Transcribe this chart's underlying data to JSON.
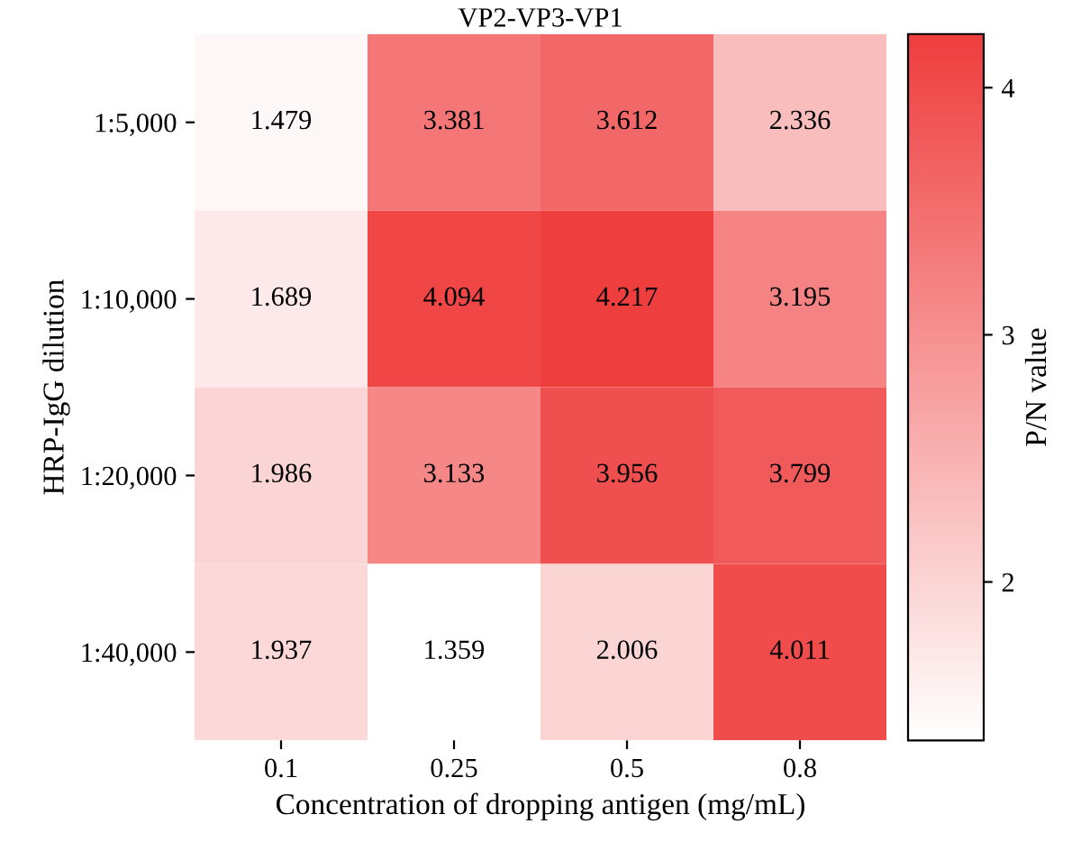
{
  "chart_data": {
    "type": "heatmap",
    "title": "VP2-VP3-VP1",
    "xlabel": "Concentration of dropping antigen (mg/mL)",
    "ylabel": "HRP-IgG dilution",
    "clabel": "P/N value",
    "categories": [
      "0.1",
      "0.25",
      "0.5",
      "0.8"
    ],
    "y_categories": [
      "1:5,000",
      "1:10,000",
      "1:20,000",
      "1:40,000"
    ],
    "cells": [
      [
        1.479,
        3.381,
        3.612,
        2.336
      ],
      [
        1.689,
        4.094,
        4.217,
        3.195
      ],
      [
        1.986,
        3.133,
        3.956,
        3.799
      ],
      [
        1.937,
        1.359,
        2.006,
        4.011
      ]
    ],
    "colors": [
      "#ffffff",
      "#ef3e3e"
    ],
    "clim": [
      1.359,
      4.217
    ],
    "cticks": [
      2,
      3,
      4
    ],
    "data_labels": true
  }
}
